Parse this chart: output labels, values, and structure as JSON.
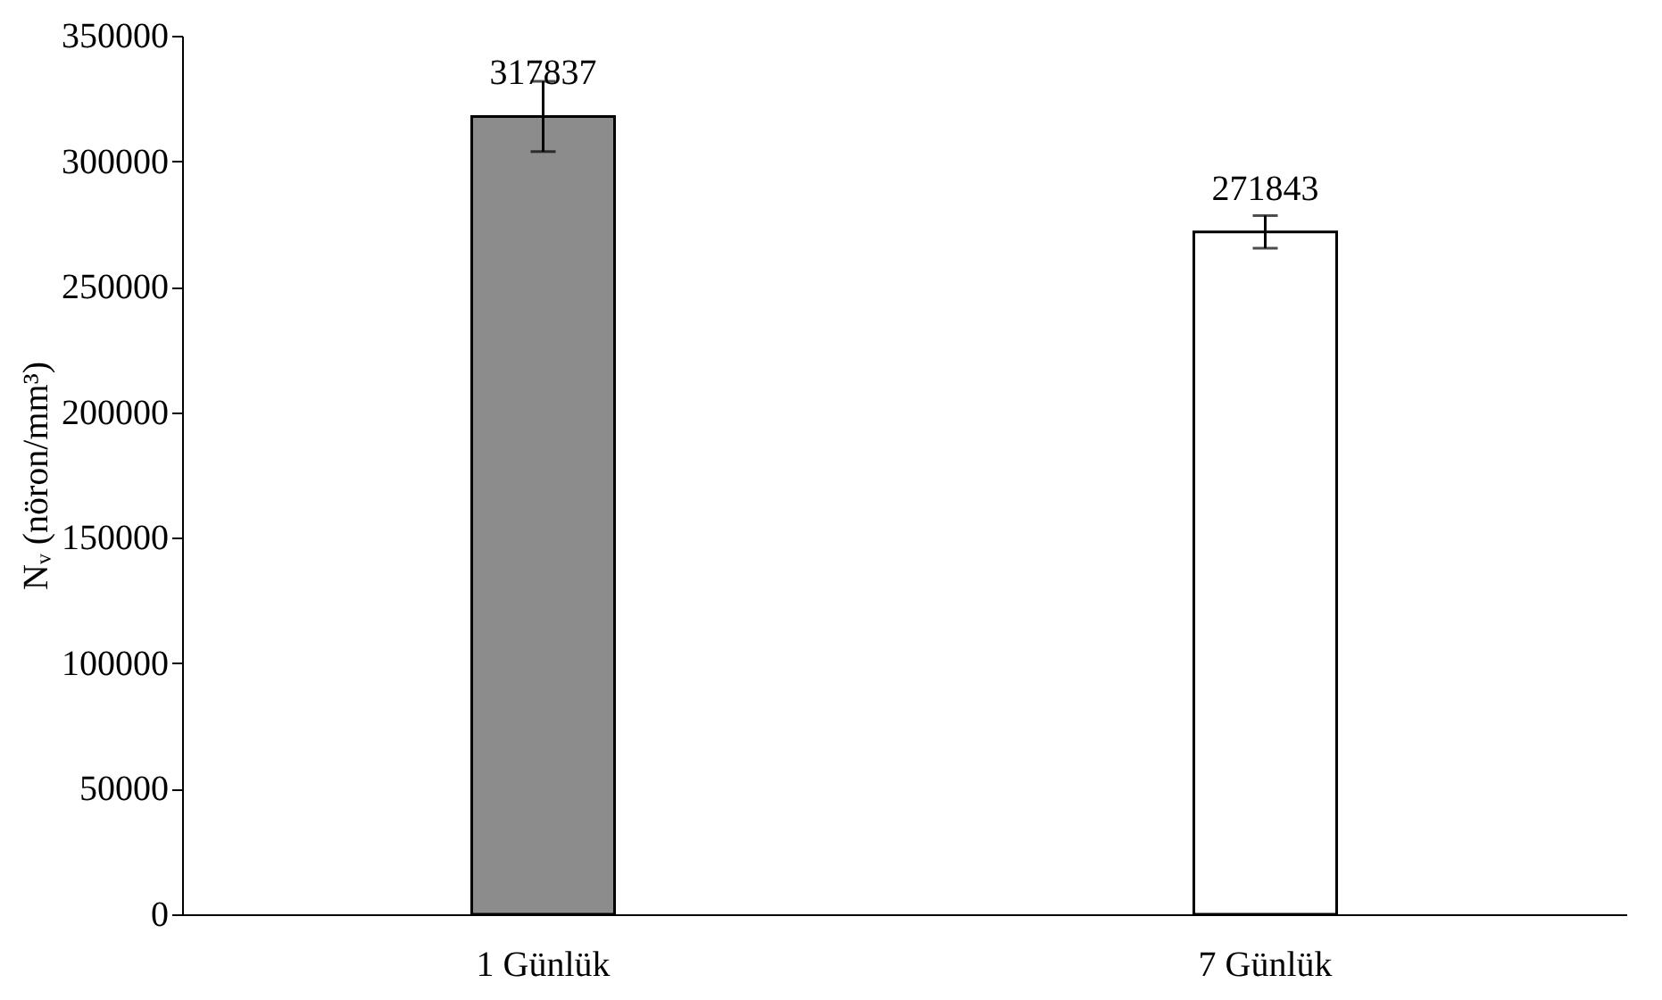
{
  "chart_data": {
    "type": "bar",
    "ylabel": "Nᵥ (nöron/mm³)",
    "categories": [
      "1 Günlük",
      "7 Günlük"
    ],
    "values": [
      317837,
      271843
    ],
    "colors": [
      "#8c8c8c",
      "#ffffff"
    ],
    "errors": [
      14000,
      6500
    ],
    "data_labels": true,
    "ylim": [
      0,
      350000
    ],
    "yticks": [
      0,
      50000,
      100000,
      150000,
      200000,
      250000,
      300000,
      350000
    ],
    "grid": false
  }
}
